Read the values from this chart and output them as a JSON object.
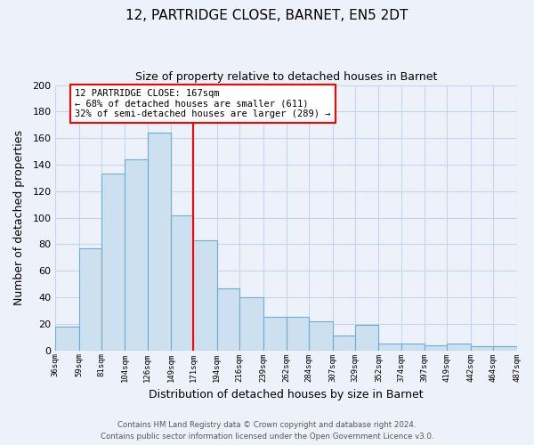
{
  "title": "12, PARTRIDGE CLOSE, BARNET, EN5 2DT",
  "subtitle": "Size of property relative to detached houses in Barnet",
  "xlabel": "Distribution of detached houses by size in Barnet",
  "ylabel": "Number of detached properties",
  "bins": [
    36,
    59,
    81,
    104,
    126,
    149,
    171,
    194,
    216,
    239,
    262,
    284,
    307,
    329,
    352,
    374,
    397,
    419,
    442,
    464,
    487
  ],
  "values": [
    18,
    77,
    133,
    144,
    164,
    102,
    83,
    47,
    40,
    25,
    25,
    22,
    11,
    19,
    5,
    5,
    4,
    5,
    3,
    3
  ],
  "bar_color": "#cce0f0",
  "bar_edge_color": "#6aaed6",
  "vline_x": 171,
  "vline_color": "red",
  "annotation_line1": "12 PARTRIDGE CLOSE: 167sqm",
  "annotation_line2": "← 68% of detached houses are smaller (611)",
  "annotation_line3": "32% of semi-detached houses are larger (289) →",
  "annotation_box_color": "white",
  "annotation_box_edge": "red",
  "ylim": [
    0,
    200
  ],
  "yticks": [
    0,
    20,
    40,
    60,
    80,
    100,
    120,
    140,
    160,
    180,
    200
  ],
  "grid_color": "#c8d4e8",
  "footer1": "Contains HM Land Registry data © Crown copyright and database right 2024.",
  "footer2": "Contains public sector information licensed under the Open Government Licence v3.0.",
  "bg_color": "#edf2fa"
}
